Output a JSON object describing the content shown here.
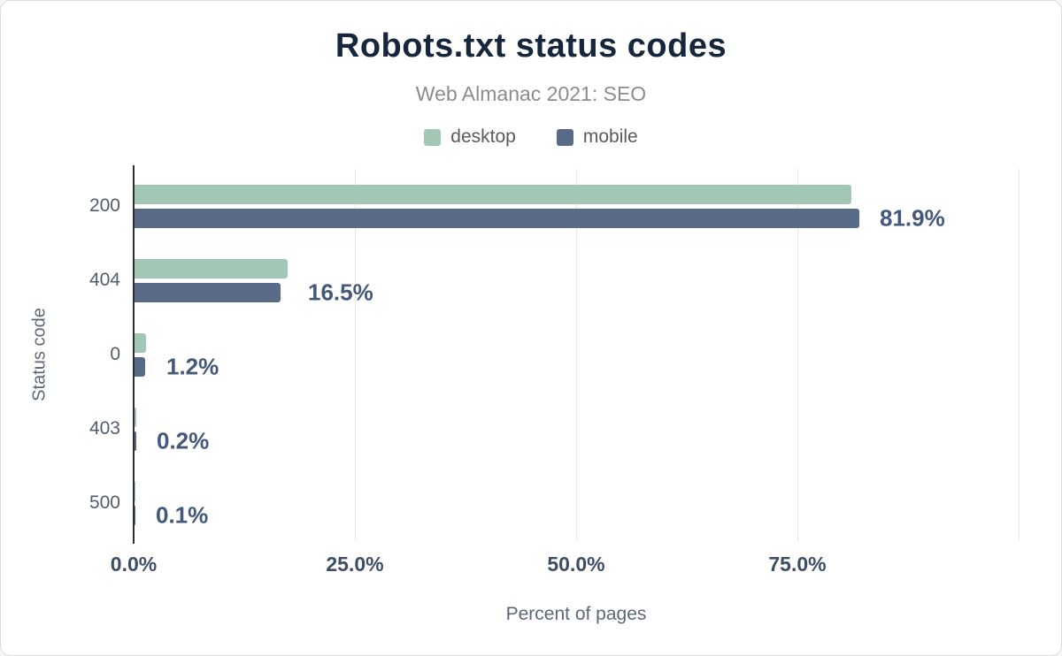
{
  "chart_data": {
    "type": "bar",
    "orientation": "horizontal",
    "title": "Robots.txt status codes",
    "subtitle": "Web Almanac 2021: SEO",
    "categories": [
      "200",
      "404",
      "0",
      "403",
      "500"
    ],
    "series": [
      {
        "name": "desktop",
        "color": "#a2c8b5",
        "values": [
          81.0,
          17.3,
          1.3,
          0.2,
          0.1
        ]
      },
      {
        "name": "mobile",
        "color": "#5a6b88",
        "values": [
          81.9,
          16.5,
          1.2,
          0.2,
          0.1
        ]
      }
    ],
    "value_labels": [
      "81.9%",
      "16.5%",
      "1.2%",
      "0.2%",
      "0.1%"
    ],
    "xlabel": "Percent of pages",
    "ylabel": "Status code",
    "x_ticks": [
      "0.0%",
      "25.0%",
      "50.0%",
      "75.0%"
    ],
    "x_tick_values": [
      0,
      25,
      50,
      75
    ],
    "grid_values": [
      25,
      50,
      75,
      100
    ],
    "xlim": [
      0,
      100
    ],
    "grid": "vertical",
    "legend_position": "top",
    "colors": {
      "title": "#16263d",
      "subtitle": "#8c8c8c",
      "value_label": "#44587b",
      "axis_line": "#2e2e2e",
      "gridline": "#e8e8e8"
    }
  }
}
